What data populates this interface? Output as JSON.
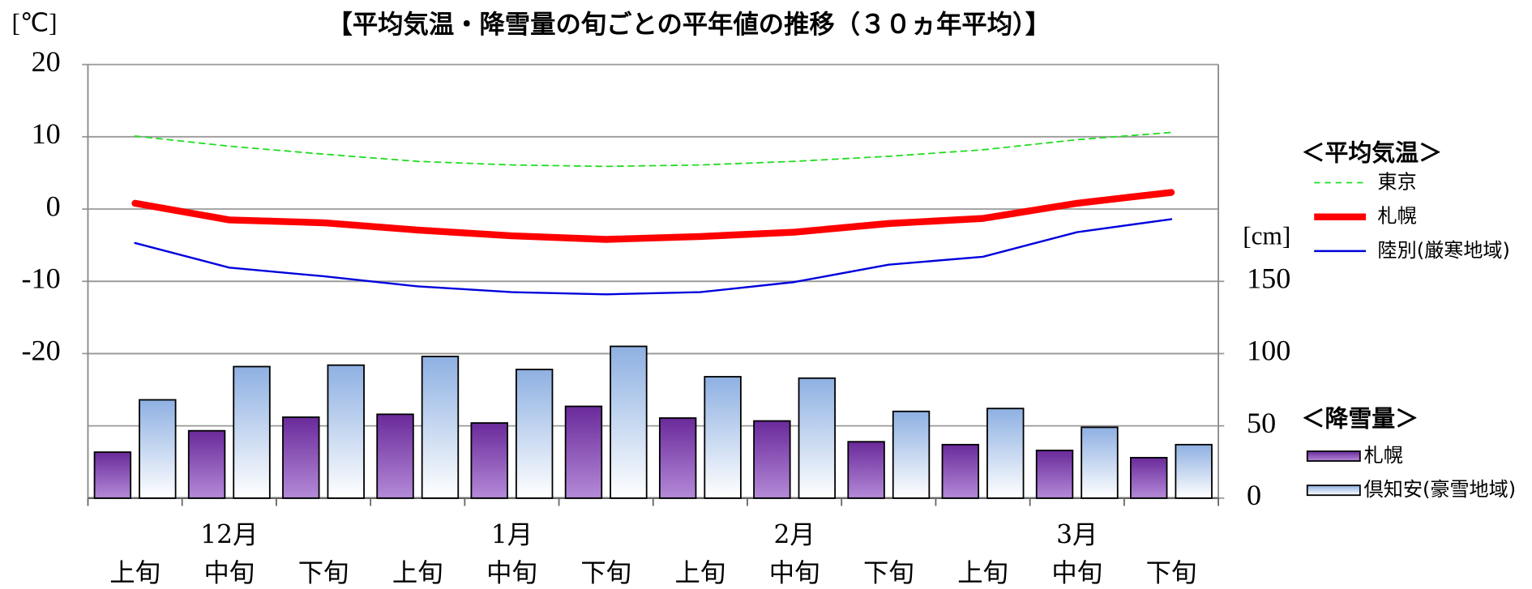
{
  "chart_data": {
    "type": "bar",
    "title": "【平均気温・降雪量の旬ごとの平年値の推移（３０ヵ年平均）】",
    "y_label": "[℃]",
    "y2_label": "[cm]",
    "months": [
      "12月",
      "1月",
      "2月",
      "3月"
    ],
    "categories": [
      "上旬",
      "中旬",
      "下旬",
      "上旬",
      "中旬",
      "下旬",
      "上旬",
      "中旬",
      "下旬",
      "上旬",
      "中旬",
      "下旬"
    ],
    "ylim": [
      -40,
      20
    ],
    "yticks": [
      -20,
      -10,
      0,
      10,
      20
    ],
    "y2lim": [
      0,
      300
    ],
    "y2ticks": [
      0,
      50,
      100,
      150
    ],
    "grid": true,
    "legend_groups": [
      "＜平均気温＞",
      "＜降雪量＞"
    ],
    "series": [
      {
        "name": "東京",
        "type": "line",
        "line_style": "dashed",
        "color": "#22dd22",
        "values": [
          10.1,
          8.7,
          7.6,
          6.6,
          6.1,
          5.9,
          6.1,
          6.6,
          7.3,
          8.2,
          9.6,
          10.6
        ]
      },
      {
        "name": "札幌",
        "type": "line",
        "line_style": "thick",
        "color": "#ff0000",
        "values": [
          0.8,
          -1.5,
          -1.9,
          -2.9,
          -3.7,
          -4.2,
          -3.8,
          -3.2,
          -2.0,
          -1.3,
          0.8,
          2.3
        ]
      },
      {
        "name": "陸別(厳寒地域)",
        "type": "line",
        "line_style": "thin",
        "color": "#0000dd",
        "values": [
          -4.7,
          -8.1,
          -9.3,
          -10.7,
          -11.5,
          -11.8,
          -11.5,
          -10.1,
          -7.7,
          -6.6,
          -3.2,
          -1.4
        ]
      },
      {
        "name": "札幌",
        "type": "bar",
        "axis": "y2",
        "color": "#7030a0",
        "values": [
          31.8,
          46.6,
          56,
          58,
          52,
          63.5,
          55.4,
          53.4,
          39,
          37,
          33,
          28
        ]
      },
      {
        "name": "倶知安(豪雪地域)",
        "type": "bar",
        "axis": "y2",
        "color": "#8eb0e2",
        "values": [
          68,
          91,
          92,
          98,
          89,
          105,
          84,
          83,
          60,
          62,
          49,
          37
        ]
      }
    ]
  }
}
